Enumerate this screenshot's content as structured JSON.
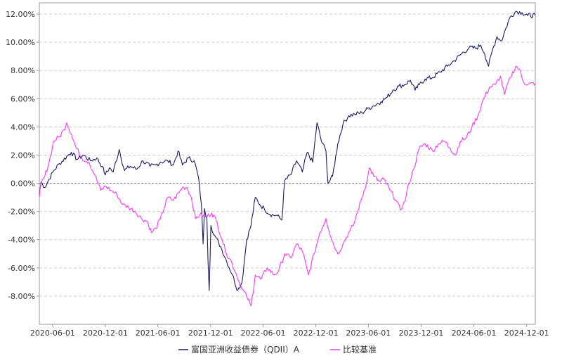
{
  "chart_data": {
    "type": "line",
    "title": "",
    "xlabel": "",
    "ylabel": "",
    "ylim": [
      -10.0,
      12.8
    ],
    "y_ticks": [
      12,
      10,
      8,
      6,
      4,
      2,
      0,
      -2,
      -4,
      -6,
      -8
    ],
    "y_tick_labels": [
      "12.00%",
      "10.00%",
      "8.00%",
      "6.00%",
      "4.00%",
      "2.00%",
      "0.00%",
      "-2.00%",
      "-4.00%",
      "-6.00%",
      "-8.00%"
    ],
    "x_range": [
      "2020-04-16",
      "2024-12-31"
    ],
    "x_ticks": [
      "2020-06-01",
      "2020-12-01",
      "2021-06-01",
      "2021-12-01",
      "2022-06-01",
      "2022-12-01",
      "2023-06-01",
      "2023-12-01",
      "2024-06-01",
      "2024-12-01"
    ],
    "grid": "horizontal dashed",
    "legend_position": "bottom",
    "series": [
      {
        "name": "富国亚洲收益债券（QDII）A",
        "color": "#1a1a66",
        "points": [
          [
            "2020-04-16",
            -0.8
          ],
          [
            "2020-04-22",
            0.1
          ],
          [
            "2020-05-05",
            -0.3
          ],
          [
            "2020-05-20",
            0.3
          ],
          [
            "2020-06-05",
            0.9
          ],
          [
            "2020-06-25",
            1.4
          ],
          [
            "2020-07-20",
            1.9
          ],
          [
            "2020-08-05",
            2.2
          ],
          [
            "2020-08-25",
            1.7
          ],
          [
            "2020-09-15",
            2.0
          ],
          [
            "2020-10-10",
            1.6
          ],
          [
            "2020-11-01",
            1.8
          ],
          [
            "2020-11-20",
            1.2
          ],
          [
            "2020-12-01",
            0.6
          ],
          [
            "2020-12-15",
            1.1
          ],
          [
            "2020-12-28",
            0.8
          ],
          [
            "2021-01-18",
            2.4
          ],
          [
            "2021-02-05",
            0.9
          ],
          [
            "2021-02-25",
            1.2
          ],
          [
            "2021-03-20",
            1.0
          ],
          [
            "2021-04-10",
            1.6
          ],
          [
            "2021-05-05",
            1.2
          ],
          [
            "2021-05-25",
            1.3
          ],
          [
            "2021-06-10",
            1.5
          ],
          [
            "2021-07-05",
            1.6
          ],
          [
            "2021-07-25",
            1.3
          ],
          [
            "2021-08-10",
            2.3
          ],
          [
            "2021-08-25",
            1.3
          ],
          [
            "2021-09-15",
            1.8
          ],
          [
            "2021-10-05",
            1.6
          ],
          [
            "2021-10-20",
            0.4
          ],
          [
            "2021-10-30",
            -1.5
          ],
          [
            "2021-11-05",
            -4.3
          ],
          [
            "2021-11-10",
            -1.8
          ],
          [
            "2021-11-18",
            -2.5
          ],
          [
            "2021-11-22",
            -5.5
          ],
          [
            "2021-11-26",
            -7.6
          ],
          [
            "2021-12-02",
            -3.0
          ],
          [
            "2021-12-15",
            -3.7
          ],
          [
            "2022-01-05",
            -4.5
          ],
          [
            "2022-01-25",
            -5.5
          ],
          [
            "2022-02-15",
            -6.5
          ],
          [
            "2022-03-05",
            -7.6
          ],
          [
            "2022-03-20",
            -7.0
          ],
          [
            "2022-04-05",
            -4.0
          ],
          [
            "2022-04-20",
            -3.0
          ],
          [
            "2022-05-05",
            -1.0
          ],
          [
            "2022-05-20",
            -1.5
          ],
          [
            "2022-06-05",
            -1.8
          ],
          [
            "2022-06-25",
            -2.2
          ],
          [
            "2022-07-20",
            -2.3
          ],
          [
            "2022-08-05",
            -2.6
          ],
          [
            "2022-08-15",
            0.2
          ],
          [
            "2022-09-05",
            0.6
          ],
          [
            "2022-09-25",
            1.6
          ],
          [
            "2022-10-15",
            0.8
          ],
          [
            "2022-11-01",
            2.2
          ],
          [
            "2022-11-20",
            1.5
          ],
          [
            "2022-12-05",
            4.3
          ],
          [
            "2022-12-20",
            3.0
          ],
          [
            "2023-01-05",
            2.3
          ],
          [
            "2023-01-12",
            0.0
          ],
          [
            "2023-01-28",
            0.5
          ],
          [
            "2023-02-15",
            2.8
          ],
          [
            "2023-03-05",
            4.2
          ],
          [
            "2023-03-25",
            4.8
          ],
          [
            "2023-04-15",
            4.9
          ],
          [
            "2023-05-10",
            5.0
          ],
          [
            "2023-05-30",
            5.3
          ],
          [
            "2023-06-20",
            5.5
          ],
          [
            "2023-07-15",
            5.8
          ],
          [
            "2023-08-05",
            6.1
          ],
          [
            "2023-08-25",
            6.6
          ],
          [
            "2023-09-15",
            6.9
          ],
          [
            "2023-10-05",
            7.0
          ],
          [
            "2023-10-25",
            7.3
          ],
          [
            "2023-11-10",
            6.6
          ],
          [
            "2023-11-25",
            7.0
          ],
          [
            "2023-12-15",
            7.4
          ],
          [
            "2024-01-10",
            7.5
          ],
          [
            "2024-02-05",
            7.9
          ],
          [
            "2024-03-01",
            8.3
          ],
          [
            "2024-03-25",
            8.7
          ],
          [
            "2024-04-20",
            9.2
          ],
          [
            "2024-05-15",
            9.6
          ],
          [
            "2024-06-10",
            9.6
          ],
          [
            "2024-06-25",
            9.8
          ],
          [
            "2024-07-08",
            9.2
          ],
          [
            "2024-07-22",
            8.3
          ],
          [
            "2024-08-05",
            9.5
          ],
          [
            "2024-08-20",
            10.4
          ],
          [
            "2024-09-05",
            10.1
          ],
          [
            "2024-09-20",
            11.0
          ],
          [
            "2024-10-05",
            11.8
          ],
          [
            "2024-10-25",
            12.2
          ],
          [
            "2024-11-15",
            12.1
          ],
          [
            "2024-12-05",
            11.9
          ],
          [
            "2024-12-31",
            11.9
          ]
        ]
      },
      {
        "name": "比较基准",
        "color": "#ff33ff",
        "points": [
          [
            "2020-04-16",
            -1.0
          ],
          [
            "2020-04-22",
            0.0
          ],
          [
            "2020-05-05",
            0.5
          ],
          [
            "2020-05-20",
            1.5
          ],
          [
            "2020-06-05",
            3.0
          ],
          [
            "2020-06-25",
            3.3
          ],
          [
            "2020-07-10",
            3.8
          ],
          [
            "2020-07-20",
            4.3
          ],
          [
            "2020-08-05",
            3.5
          ],
          [
            "2020-08-20",
            2.6
          ],
          [
            "2020-09-10",
            1.8
          ],
          [
            "2020-10-05",
            1.5
          ],
          [
            "2020-10-25",
            0.6
          ],
          [
            "2020-11-15",
            -0.5
          ],
          [
            "2020-12-01",
            -0.2
          ],
          [
            "2020-12-20",
            -0.5
          ],
          [
            "2021-01-10",
            -0.8
          ],
          [
            "2021-01-30",
            -1.5
          ],
          [
            "2021-02-20",
            -1.7
          ],
          [
            "2021-03-15",
            -2.0
          ],
          [
            "2021-04-05",
            -2.5
          ],
          [
            "2021-04-25",
            -2.7
          ],
          [
            "2021-05-10",
            -3.5
          ],
          [
            "2021-05-25",
            -3.2
          ],
          [
            "2021-06-10",
            -2.5
          ],
          [
            "2021-07-05",
            -1.0
          ],
          [
            "2021-07-25",
            -1.2
          ],
          [
            "2021-08-15",
            -0.6
          ],
          [
            "2021-08-25",
            -0.3
          ],
          [
            "2021-09-10",
            -0.3
          ],
          [
            "2021-09-25",
            -1.0
          ],
          [
            "2021-10-10",
            -2.5
          ],
          [
            "2021-10-25",
            -2.2
          ],
          [
            "2021-11-15",
            -2.4
          ],
          [
            "2021-12-05",
            -2.1
          ],
          [
            "2021-12-20",
            -2.6
          ],
          [
            "2022-01-10",
            -4.0
          ],
          [
            "2022-01-25",
            -5.0
          ],
          [
            "2022-02-10",
            -5.5
          ],
          [
            "2022-03-01",
            -6.5
          ],
          [
            "2022-03-20",
            -7.5
          ],
          [
            "2022-04-05",
            -8.0
          ],
          [
            "2022-04-20",
            -8.7
          ],
          [
            "2022-05-05",
            -6.5
          ],
          [
            "2022-05-25",
            -6.8
          ],
          [
            "2022-06-15",
            -6.0
          ],
          [
            "2022-07-10",
            -6.5
          ],
          [
            "2022-07-25",
            -6.2
          ],
          [
            "2022-08-15",
            -5.0
          ],
          [
            "2022-09-05",
            -5.3
          ],
          [
            "2022-09-25",
            -4.3
          ],
          [
            "2022-10-15",
            -4.8
          ],
          [
            "2022-11-05",
            -6.5
          ],
          [
            "2022-11-25",
            -5.0
          ],
          [
            "2022-12-15",
            -3.5
          ],
          [
            "2023-01-05",
            -2.5
          ],
          [
            "2023-01-25",
            -4.0
          ],
          [
            "2023-02-15",
            -5.0
          ],
          [
            "2023-03-05",
            -4.3
          ],
          [
            "2023-03-25",
            -3.5
          ],
          [
            "2023-04-10",
            -3.0
          ],
          [
            "2023-04-25",
            -2.0
          ],
          [
            "2023-05-10",
            -1.0
          ],
          [
            "2023-05-25",
            0.0
          ],
          [
            "2023-06-05",
            1.1
          ],
          [
            "2023-06-20",
            0.5
          ],
          [
            "2023-07-10",
            0.1
          ],
          [
            "2023-07-25",
            0.3
          ],
          [
            "2023-08-15",
            -0.5
          ],
          [
            "2023-09-05",
            -1.2
          ],
          [
            "2023-09-20",
            -1.9
          ],
          [
            "2023-10-05",
            -1.3
          ],
          [
            "2023-10-20",
            0.0
          ],
          [
            "2023-11-05",
            1.0
          ],
          [
            "2023-11-25",
            2.5
          ],
          [
            "2023-12-15",
            2.8
          ],
          [
            "2024-01-10",
            2.3
          ],
          [
            "2024-01-30",
            2.8
          ],
          [
            "2024-02-20",
            3.0
          ],
          [
            "2024-03-10",
            2.5
          ],
          [
            "2024-03-30",
            2.0
          ],
          [
            "2024-04-15",
            3.0
          ],
          [
            "2024-05-05",
            3.2
          ],
          [
            "2024-05-25",
            4.0
          ],
          [
            "2024-06-15",
            4.8
          ],
          [
            "2024-07-05",
            6.0
          ],
          [
            "2024-07-25",
            6.8
          ],
          [
            "2024-08-15",
            7.0
          ],
          [
            "2024-09-01",
            7.6
          ],
          [
            "2024-09-15",
            6.3
          ],
          [
            "2024-10-05",
            7.5
          ],
          [
            "2024-10-25",
            8.3
          ],
          [
            "2024-11-05",
            8.1
          ],
          [
            "2024-11-20",
            7.2
          ],
          [
            "2024-12-05",
            7.0
          ],
          [
            "2024-12-31",
            7.1
          ]
        ]
      }
    ]
  }
}
